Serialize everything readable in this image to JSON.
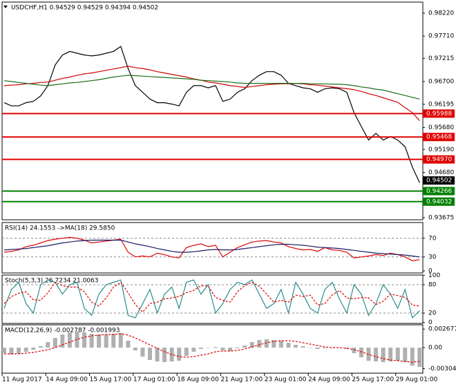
{
  "chart_data": [
    {
      "type": "line",
      "title": "USDCHF,H1  0.94529 0.94529 0.94394 0.94502",
      "categories": [
        "11 Aug 2017",
        null,
        null,
        null,
        null,
        null,
        "14 Aug 09:00",
        null,
        null,
        null,
        null,
        null,
        "15 Aug 17:00",
        null,
        null,
        null,
        null,
        null,
        "17 Aug 01:00",
        null,
        null,
        null,
        null,
        null,
        "18 Aug 09:00",
        null,
        null,
        null,
        null,
        null,
        "21 Aug 17:00",
        null,
        null,
        null,
        null,
        null,
        "23 Aug 01:00",
        null,
        null,
        null,
        null,
        null,
        "24 Aug 09:00",
        null,
        null,
        null,
        null,
        null,
        "25 Aug 17:00",
        null,
        null,
        null,
        null,
        null,
        "29 Aug 01:00",
        null,
        null,
        null
      ],
      "series": [
        {
          "color": "#000000",
          "values": [
            0.9623,
            0.9616,
            0.9616,
            0.9623,
            0.9626,
            0.9638,
            0.9661,
            0.9707,
            0.9729,
            0.9737,
            0.9733,
            0.9729,
            0.9727,
            0.9729,
            0.9733,
            0.9737,
            0.9748,
            0.9699,
            0.9661,
            0.9646,
            0.9631,
            0.9623,
            0.9623,
            0.962,
            0.9616,
            0.9646,
            0.9661,
            0.9661,
            0.9656,
            0.9661,
            0.9626,
            0.9631,
            0.9646,
            0.9654,
            0.9672,
            0.9684,
            0.9692,
            0.9692,
            0.9684,
            0.9666,
            0.9661,
            0.9656,
            0.9654,
            0.9646,
            0.9654,
            0.9656,
            0.9654,
            0.9646,
            0.9601,
            0.957,
            0.954,
            0.9555,
            0.954,
            0.9548,
            0.954,
            0.9525,
            0.948,
            0.9445
          ]
        },
        {
          "color": "#d00000",
          "values": [
            0.9661,
            0.9662,
            0.9663,
            0.9665,
            0.9666,
            0.9668,
            0.9669,
            0.9673,
            0.9677,
            0.968,
            0.9684,
            0.9687,
            0.9689,
            0.9692,
            0.9695,
            0.9698,
            0.9701,
            0.9704,
            0.9701,
            0.9699,
            0.9696,
            0.9692,
            0.9689,
            0.9686,
            0.9683,
            0.968,
            0.9676,
            0.9673,
            0.9669,
            0.9667,
            0.9664,
            0.9661,
            0.9659,
            0.9657,
            0.9659,
            0.9661,
            0.9663,
            0.9664,
            0.9665,
            0.9665,
            0.9666,
            0.9665,
            0.9663,
            0.9662,
            0.966,
            0.9658,
            0.9656,
            0.9654,
            0.9652,
            0.9648,
            0.9643,
            0.9639,
            0.9634,
            0.9629,
            0.9624,
            0.9612,
            0.9601,
            0.9583
          ]
        },
        {
          "color": "#1a6e1a",
          "values": [
            0.9672,
            0.967,
            0.9668,
            0.9666,
            0.9664,
            0.9662,
            0.9661,
            0.9663,
            0.9665,
            0.9667,
            0.9668,
            0.967,
            0.9672,
            0.9674,
            0.9677,
            0.968,
            0.9682,
            0.9684,
            0.9683,
            0.9682,
            0.9681,
            0.968,
            0.9679,
            0.9678,
            0.9677,
            0.9676,
            0.9675,
            0.9673,
            0.9672,
            0.9671,
            0.967,
            0.9669,
            0.9667,
            0.9666,
            0.9666,
            0.9666,
            0.9666,
            0.9666,
            0.9666,
            0.9666,
            0.9666,
            0.9666,
            0.9665,
            0.9665,
            0.9665,
            0.9664,
            0.9664,
            0.9663,
            0.9661,
            0.9658,
            0.9656,
            0.9653,
            0.9651,
            0.9647,
            0.9643,
            0.9639,
            0.9635,
            0.9631
          ]
        }
      ],
      "levels": [
        {
          "value": 0.95988,
          "color": "#e00000"
        },
        {
          "value": 0.95468,
          "color": "#e00000"
        },
        {
          "value": 0.9497,
          "label": "0.94970",
          "color": "#e00000"
        },
        {
          "value": 0.94266,
          "color": "#008000"
        },
        {
          "value": 0.94032,
          "color": "#008000"
        }
      ],
      "last_price": 0.94502,
      "ylim": [
        0.93629,
        0.98466
      ],
      "yticks": [
        {
          "value": 0.9822,
          "label": "0.98220"
        },
        {
          "value": 0.9771,
          "label": "0.97710"
        },
        0.97215,
        {
          "value": 0.967,
          "label": "0.96700"
        },
        0.96195,
        {
          "value": 0.9568,
          "label": "0.95680"
        },
        {
          "value": 0.9519,
          "label": "0.95190"
        },
        {
          "value": 0.9468,
          "label": "0.94680"
        },
        0.93675
      ]
    },
    {
      "type": "line",
      "title": "RSI(14) 24.1553  ->MA(18) 29.5850",
      "series": [
        {
          "color": "#e00000",
          "values": [
            40,
            42,
            45,
            52,
            55,
            60,
            65,
            68,
            70,
            72,
            70,
            66,
            60,
            62,
            64,
            66,
            68,
            40,
            30,
            32,
            30,
            38,
            35,
            30,
            28,
            50,
            55,
            58,
            52,
            55,
            30,
            40,
            50,
            56,
            62,
            64,
            65,
            62,
            60,
            52,
            48,
            45,
            46,
            42,
            50,
            45,
            44,
            40,
            28,
            30,
            32,
            35,
            33,
            38,
            35,
            30,
            22,
            24
          ]
        },
        {
          "color": "#1a1a66",
          "values": [
            45,
            46,
            47,
            48,
            50,
            52,
            54,
            57,
            60,
            62,
            64,
            65,
            66,
            66,
            66,
            66,
            66,
            62,
            58,
            55,
            52,
            48,
            45,
            42,
            40,
            40,
            41,
            43,
            45,
            46,
            45,
            45,
            46,
            48,
            50,
            52,
            54,
            56,
            57,
            57,
            56,
            55,
            53,
            51,
            50,
            49,
            48,
            46,
            44,
            42,
            40,
            38,
            37,
            36,
            35,
            34,
            32,
            30
          ]
        }
      ],
      "ylim": [
        -4.4,
        103.7
      ],
      "yticks": [
        70,
        30,
        0
      ],
      "levels": [
        70,
        30
      ]
    },
    {
      "type": "line",
      "title": "Stoch(5,3,3) 26.7234 21.0063",
      "series": [
        {
          "color": "#2a8c8c",
          "values": [
            30,
            70,
            85,
            40,
            20,
            80,
            90,
            85,
            60,
            80,
            85,
            30,
            15,
            60,
            80,
            85,
            90,
            15,
            10,
            40,
            70,
            20,
            60,
            75,
            30,
            85,
            90,
            60,
            80,
            20,
            40,
            70,
            85,
            80,
            90,
            60,
            30,
            40,
            70,
            20,
            85,
            60,
            30,
            20,
            70,
            85,
            50,
            20,
            80,
            60,
            15,
            40,
            80,
            60,
            30,
            70,
            10,
            25
          ]
        },
        {
          "color": "#e00000",
          "dashed": true,
          "values": [
            40,
            55,
            62,
            65,
            48,
            47,
            63,
            85,
            78,
            75,
            75,
            65,
            43,
            35,
            52,
            75,
            85,
            63,
            38,
            22,
            40,
            43,
            50,
            52,
            55,
            63,
            68,
            78,
            77,
            53,
            47,
            43,
            65,
            78,
            85,
            77,
            60,
            43,
            47,
            43,
            58,
            55,
            58,
            37,
            40,
            58,
            68,
            52,
            50,
            53,
            52,
            38,
            45,
            60,
            57,
            53,
            37,
            35
          ]
        }
      ],
      "ylim": [
        -1.9,
        100.4
      ],
      "yticks": [
        100,
        80,
        20,
        0
      ],
      "levels": [
        80,
        20
      ]
    },
    {
      "type": "bar",
      "title": "MACD(12,26,9) -0.002787 -0.001993",
      "values": [
        -0.0008,
        -0.001,
        -0.0009,
        -0.0006,
        -0.0003,
        0.0002,
        0.0008,
        0.0014,
        0.0019,
        0.0022,
        0.0023,
        0.0022,
        0.002,
        0.0019,
        0.0019,
        0.002,
        0.0021,
        0.001,
        -0.0004,
        -0.0013,
        -0.0018,
        -0.002,
        -0.0021,
        -0.002,
        -0.0019,
        -0.0012,
        -0.0006,
        -0.0002,
        0,
        0.0001,
        -0.0004,
        -0.0005,
        -0.0001,
        0.0003,
        0.0008,
        0.0011,
        0.0012,
        0.0011,
        0.001,
        0.0007,
        0.0004,
        0.0002,
        0,
        -0.0002,
        -0.0001,
        0,
        0,
        -0.0002,
        -0.0008,
        -0.0014,
        -0.0019,
        -0.002,
        -0.0021,
        -0.002,
        -0.0019,
        -0.0021,
        -0.0026,
        -0.0028
      ],
      "color": "#b0b0b0",
      "signal": {
        "color": "#e00000",
        "values": [
          -0.0009,
          -0.0009,
          -0.0009,
          -0.0008,
          -0.0007,
          -0.0005,
          -0.0003,
          0,
          0.0004,
          0.0008,
          0.0012,
          0.0015,
          0.0017,
          0.0018,
          0.0019,
          0.0019,
          0.002,
          0.0018,
          0.0014,
          0.0009,
          0.0004,
          -0.0001,
          -0.0006,
          -0.001,
          -0.0013,
          -0.0014,
          -0.0013,
          -0.0011,
          -0.0009,
          -0.0006,
          -0.0005,
          -0.0005,
          -0.0004,
          -0.0002,
          0.0001,
          0.0004,
          0.0007,
          0.0009,
          0.001,
          0.001,
          0.0009,
          0.0007,
          0.0005,
          0.0003,
          0.0001,
          0,
          0,
          -0.0001,
          -0.0003,
          -0.0006,
          -0.001,
          -0.0013,
          -0.0016,
          -0.0018,
          -0.0019,
          -0.002,
          -0.0021,
          -0.002
        ]
      },
      "ylim": [
        -0.0037,
        0.0033
      ],
      "yticks": [
        0.002677,
        {
          "value": 0,
          "label": "0.00"
        },
        -0.003047
      ]
    }
  ]
}
